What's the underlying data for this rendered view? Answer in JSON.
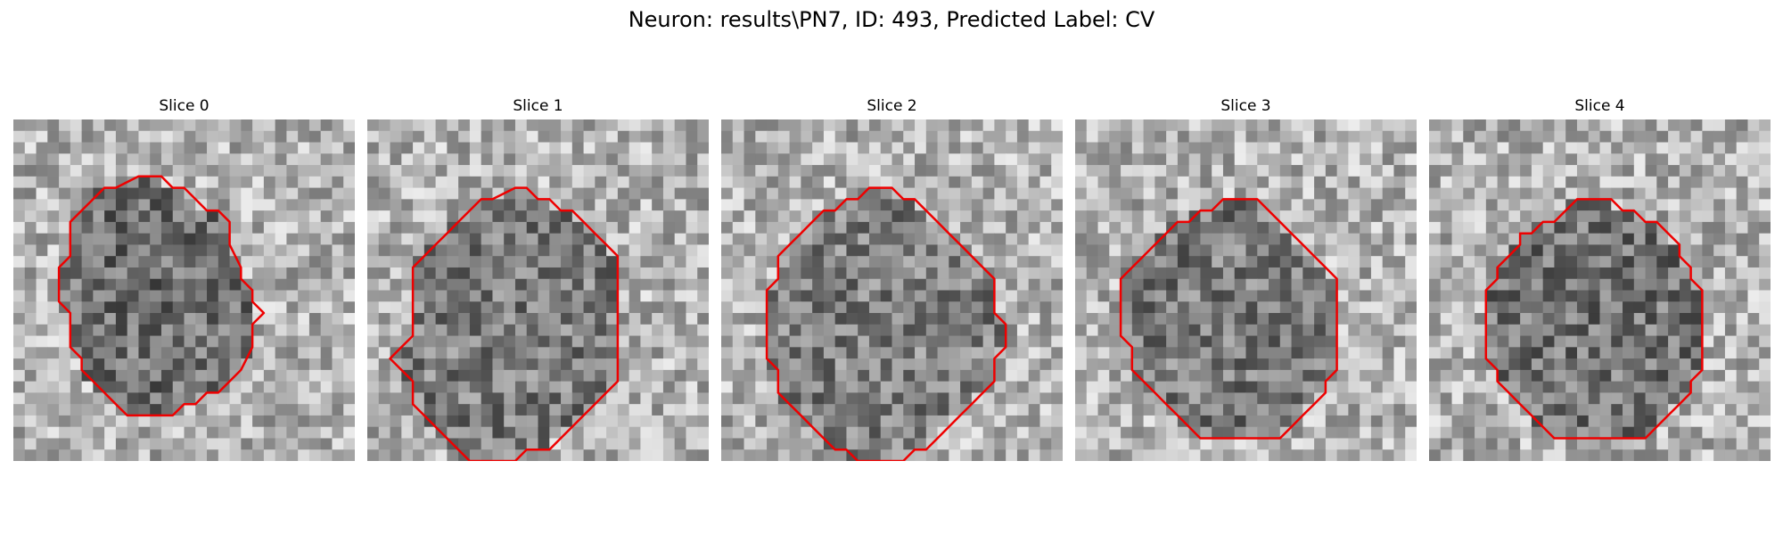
{
  "figure": {
    "title": "Neuron: results\\PN7, ID: 493, Predicted Label: CV"
  },
  "contour_color": "#ee0000",
  "panels": [
    {
      "label": "Slice 0",
      "seed": 11,
      "darkness": 0.85,
      "contour": [
        [
          7,
          1
        ],
        [
          8,
          1
        ],
        [
          9,
          1
        ],
        [
          10,
          2
        ],
        [
          11,
          2
        ],
        [
          12,
          3
        ],
        [
          13,
          4
        ],
        [
          14,
          4
        ],
        [
          15,
          5
        ],
        [
          15,
          7
        ],
        [
          16,
          9
        ],
        [
          16,
          10
        ],
        [
          17,
          11
        ],
        [
          17,
          12
        ],
        [
          18,
          13
        ],
        [
          17,
          14
        ],
        [
          17,
          16
        ],
        [
          16,
          18
        ],
        [
          15,
          19
        ],
        [
          14,
          20
        ],
        [
          13,
          20
        ],
        [
          12,
          21
        ],
        [
          11,
          21
        ],
        [
          10,
          22
        ],
        [
          7,
          22
        ],
        [
          6,
          22
        ],
        [
          5,
          21
        ],
        [
          4,
          20
        ],
        [
          3,
          19
        ],
        [
          2,
          18
        ],
        [
          2,
          17
        ],
        [
          1,
          16
        ],
        [
          1,
          13
        ],
        [
          0,
          12
        ],
        [
          0,
          11
        ],
        [
          0,
          9
        ],
        [
          1,
          8
        ],
        [
          1,
          6
        ],
        [
          1,
          5
        ],
        [
          3,
          3
        ],
        [
          4,
          2
        ],
        [
          5,
          2
        ]
      ]
    },
    {
      "label": "Slice 1",
      "seed": 23,
      "darkness": 0.6,
      "contour": [
        [
          9,
          2
        ],
        [
          10,
          2
        ],
        [
          11,
          3
        ],
        [
          12,
          3
        ],
        [
          13,
          4
        ],
        [
          14,
          4
        ],
        [
          15,
          5
        ],
        [
          16,
          6
        ],
        [
          17,
          7
        ],
        [
          18,
          8
        ],
        [
          18,
          10
        ],
        [
          18,
          13
        ],
        [
          18,
          16
        ],
        [
          18,
          19
        ],
        [
          17,
          20
        ],
        [
          16,
          21
        ],
        [
          15,
          22
        ],
        [
          14,
          23
        ],
        [
          13,
          24
        ],
        [
          12,
          25
        ],
        [
          10,
          25
        ],
        [
          9,
          26
        ],
        [
          6,
          26
        ],
        [
          5,
          26
        ],
        [
          4,
          25
        ],
        [
          3,
          24
        ],
        [
          2,
          23
        ],
        [
          1,
          22
        ],
        [
          0,
          21
        ],
        [
          0,
          19
        ],
        [
          -1,
          18
        ],
        [
          -2,
          17
        ],
        [
          -1,
          16
        ],
        [
          0,
          15
        ],
        [
          0,
          12
        ],
        [
          0,
          9
        ],
        [
          1,
          8
        ],
        [
          2,
          7
        ],
        [
          3,
          6
        ],
        [
          4,
          5
        ],
        [
          5,
          4
        ],
        [
          6,
          3
        ],
        [
          7,
          3
        ]
      ]
    },
    {
      "label": "Slice 2",
      "seed": 37,
      "darkness": 0.55,
      "contour": [
        [
          9,
          2
        ],
        [
          11,
          2
        ],
        [
          12,
          3
        ],
        [
          13,
          3
        ],
        [
          14,
          4
        ],
        [
          15,
          5
        ],
        [
          16,
          6
        ],
        [
          17,
          7
        ],
        [
          18,
          8
        ],
        [
          19,
          9
        ],
        [
          20,
          10
        ],
        [
          20,
          13
        ],
        [
          21,
          14
        ],
        [
          21,
          16
        ],
        [
          20,
          17
        ],
        [
          20,
          19
        ],
        [
          19,
          20
        ],
        [
          18,
          21
        ],
        [
          17,
          22
        ],
        [
          16,
          23
        ],
        [
          15,
          24
        ],
        [
          14,
          25
        ],
        [
          13,
          25
        ],
        [
          12,
          26
        ],
        [
          9,
          26
        ],
        [
          8,
          26
        ],
        [
          7,
          25
        ],
        [
          6,
          25
        ],
        [
          5,
          24
        ],
        [
          4,
          23
        ],
        [
          3,
          22
        ],
        [
          2,
          21
        ],
        [
          1,
          20
        ],
        [
          1,
          18
        ],
        [
          0,
          17
        ],
        [
          0,
          14
        ],
        [
          0,
          11
        ],
        [
          1,
          10
        ],
        [
          1,
          8
        ],
        [
          2,
          7
        ],
        [
          3,
          6
        ],
        [
          4,
          5
        ],
        [
          5,
          4
        ],
        [
          6,
          4
        ],
        [
          7,
          3
        ],
        [
          8,
          3
        ]
      ]
    },
    {
      "label": "Slice 3",
      "seed": 51,
      "darkness": 0.65,
      "contour": [
        [
          9,
          3
        ],
        [
          12,
          3
        ],
        [
          13,
          4
        ],
        [
          14,
          5
        ],
        [
          15,
          6
        ],
        [
          16,
          7
        ],
        [
          17,
          8
        ],
        [
          18,
          9
        ],
        [
          19,
          10
        ],
        [
          19,
          13
        ],
        [
          19,
          16
        ],
        [
          19,
          18
        ],
        [
          18,
          19
        ],
        [
          18,
          20
        ],
        [
          17,
          21
        ],
        [
          16,
          22
        ],
        [
          15,
          23
        ],
        [
          14,
          24
        ],
        [
          11,
          24
        ],
        [
          8,
          24
        ],
        [
          7,
          24
        ],
        [
          6,
          23
        ],
        [
          5,
          22
        ],
        [
          4,
          21
        ],
        [
          3,
          20
        ],
        [
          2,
          19
        ],
        [
          1,
          18
        ],
        [
          1,
          16
        ],
        [
          0,
          15
        ],
        [
          0,
          13
        ],
        [
          0,
          10
        ],
        [
          1,
          9
        ],
        [
          2,
          8
        ],
        [
          3,
          7
        ],
        [
          4,
          6
        ],
        [
          5,
          5
        ],
        [
          6,
          5
        ],
        [
          7,
          4
        ],
        [
          8,
          4
        ]
      ]
    },
    {
      "label": "Slice 4",
      "seed": 67,
      "darkness": 0.75,
      "contour": [
        [
          9,
          3
        ],
        [
          12,
          3
        ],
        [
          13,
          4
        ],
        [
          14,
          4
        ],
        [
          15,
          5
        ],
        [
          16,
          5
        ],
        [
          17,
          6
        ],
        [
          18,
          7
        ],
        [
          18,
          8
        ],
        [
          19,
          9
        ],
        [
          19,
          10
        ],
        [
          20,
          11
        ],
        [
          20,
          13
        ],
        [
          20,
          16
        ],
        [
          20,
          18
        ],
        [
          19,
          19
        ],
        [
          19,
          20
        ],
        [
          18,
          21
        ],
        [
          17,
          22
        ],
        [
          16,
          23
        ],
        [
          15,
          24
        ],
        [
          13,
          24
        ],
        [
          11,
          24
        ],
        [
          9,
          24
        ],
        [
          7,
          24
        ],
        [
          6,
          23
        ],
        [
          5,
          22
        ],
        [
          4,
          21
        ],
        [
          3,
          20
        ],
        [
          2,
          19
        ],
        [
          2,
          18
        ],
        [
          1,
          17
        ],
        [
          1,
          16
        ],
        [
          1,
          14
        ],
        [
          1,
          12
        ],
        [
          1,
          11
        ],
        [
          2,
          10
        ],
        [
          2,
          9
        ],
        [
          3,
          8
        ],
        [
          4,
          7
        ],
        [
          4,
          6
        ],
        [
          5,
          6
        ],
        [
          6,
          5
        ],
        [
          7,
          5
        ],
        [
          8,
          4
        ]
      ]
    }
  ]
}
